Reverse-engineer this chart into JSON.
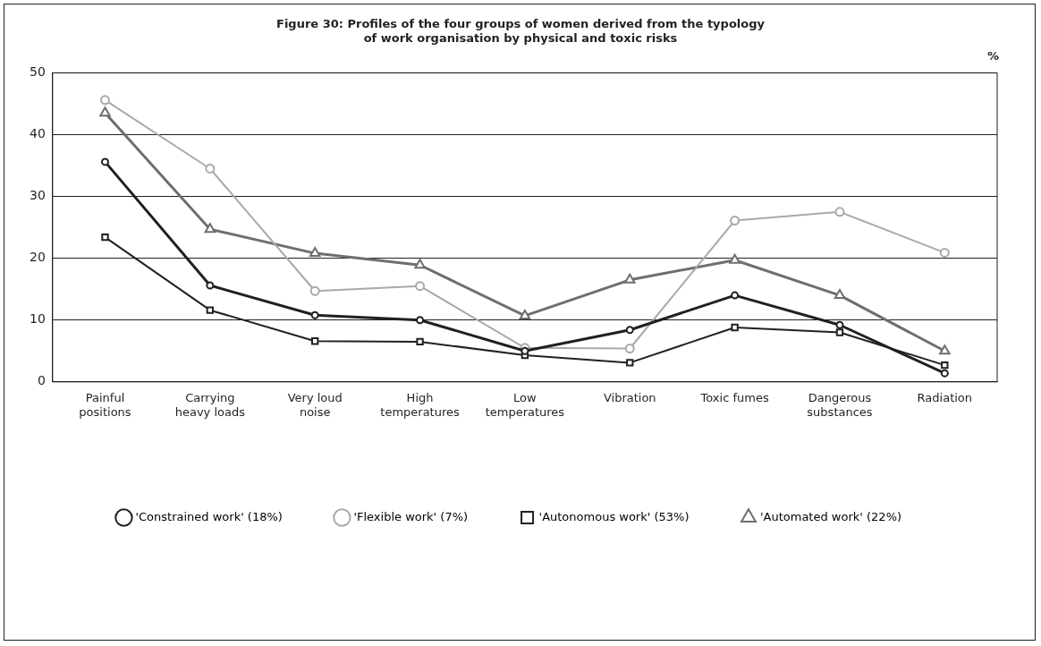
{
  "chart_data": {
    "type": "line",
    "title": "Figure 30: Profiles of the four groups of women derived from the typology\nof work organisation by physical and toxic risks",
    "ylabel": "%",
    "categories": [
      "Painful positions",
      "Carrying heavy loads",
      "Very loud noise",
      "High temperatures",
      "Low temperatures",
      "Vibration",
      "Toxic fumes",
      "Dangerous substances",
      "Radiation"
    ],
    "series": [
      {
        "name": "'Constrained work' (18%)",
        "color": "#231f20",
        "marker": "circle",
        "values": [
          35.6,
          15.6,
          10.8,
          10.0,
          5.0,
          8.4,
          14.0,
          9.2,
          1.4
        ]
      },
      {
        "name": "'Flexible work' (7%)",
        "color": "#a7a9ac",
        "marker": "circle",
        "values": [
          45.6,
          34.5,
          14.7,
          15.5,
          5.5,
          5.4,
          26.1,
          27.5,
          20.9
        ]
      },
      {
        "name": "'Autonomous work' (53%)",
        "color": "#231f20",
        "marker": "square",
        "values": [
          23.4,
          11.6,
          6.6,
          6.5,
          4.3,
          3.1,
          8.8,
          8.0,
          2.7
        ]
      },
      {
        "name": "'Automated work' (22%)",
        "color": "#6d6e71",
        "marker": "triangle",
        "values": [
          43.5,
          24.7,
          20.8,
          18.9,
          10.7,
          16.5,
          19.7,
          14.0,
          5.0
        ]
      }
    ],
    "ylim": [
      0,
      50
    ],
    "yticks": [
      0,
      10,
      20,
      30,
      40,
      50
    ],
    "grid": "y",
    "legend": "bottom",
    "line_style": "solid"
  }
}
